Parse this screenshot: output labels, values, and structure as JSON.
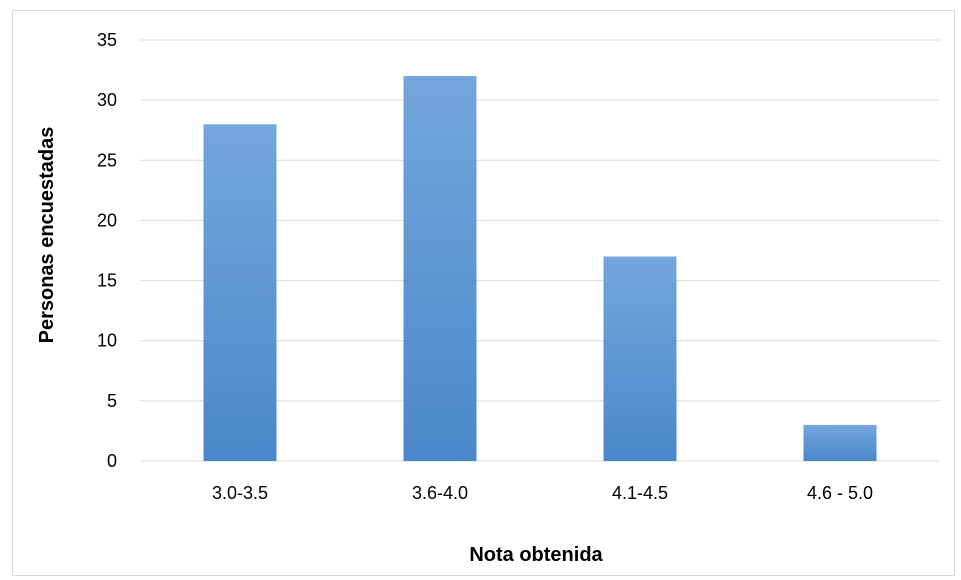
{
  "chart_data": {
    "type": "bar",
    "title": "",
    "xlabel": "Nota obtenida",
    "ylabel": "Personas encuestadas",
    "categories": [
      "3.0-3.5",
      "3.6-4.0",
      "4.1-4.5",
      "4.6 - 5.0"
    ],
    "values": [
      28,
      32,
      17,
      3
    ],
    "ylim": [
      0,
      35
    ],
    "yticks": [
      0,
      5,
      10,
      15,
      20,
      25,
      30,
      35
    ],
    "grid": true,
    "legend": "none",
    "bar_color": "#5b9bd5",
    "bar_color_top": "#74a6dc",
    "bar_color_bottom": "#4a88cb",
    "gridline_color": "#d9d9d9"
  }
}
